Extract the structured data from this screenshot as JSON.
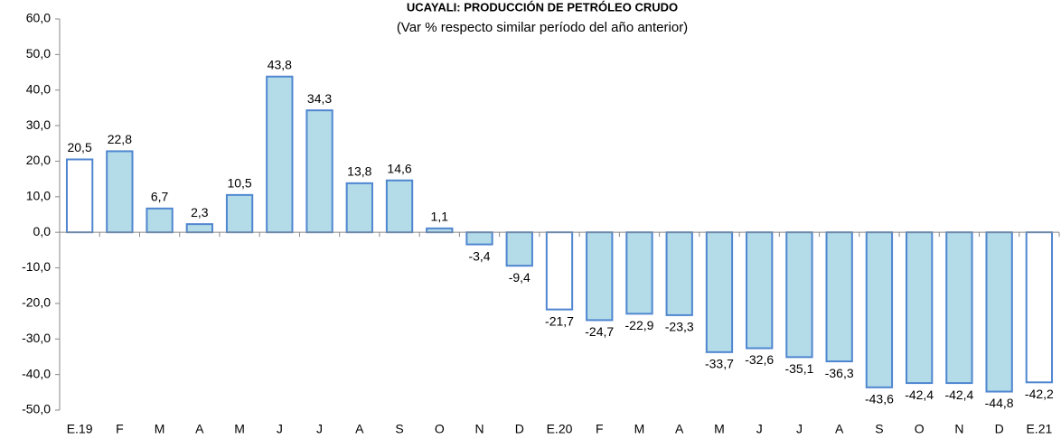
{
  "chart_data": {
    "type": "bar",
    "title": "UCAYALI: PRODUCCIÓN DE PETRÓLEO CRUDO",
    "subtitle": "(Var % respecto similar período del año anterior)",
    "categories": [
      "E.19",
      "F",
      "M",
      "A",
      "M",
      "J",
      "J",
      "A",
      "S",
      "O",
      "N",
      "D",
      "E.20",
      "F",
      "M",
      "A",
      "M",
      "J",
      "J",
      "A",
      "S",
      "O",
      "N",
      "D",
      "E.21"
    ],
    "values": [
      20.5,
      22.8,
      6.7,
      2.3,
      10.5,
      43.8,
      34.3,
      13.8,
      14.6,
      1.1,
      -3.4,
      -9.4,
      -21.7,
      -24.7,
      -22.9,
      -23.3,
      -33.7,
      -32.6,
      -35.1,
      -36.3,
      -43.6,
      -42.4,
      -42.4,
      -44.8,
      -42.2
    ],
    "value_labels": [
      "20,5",
      "22,8",
      "6,7",
      "2,3",
      "10,5",
      "43,8",
      "34,3",
      "13,8",
      "14,6",
      "1,1",
      "-3,4",
      "-9,4",
      "-21,7",
      "-24,7",
      "-22,9",
      "-23,3",
      "-33,7",
      "-32,6",
      "-35,1",
      "-36,3",
      "-43,6",
      "-42,4",
      "-42,4",
      "-44,8",
      "-42,2"
    ],
    "colors": [
      "#ffffff",
      "#b4dce8",
      "#b4dce8",
      "#b4dce8",
      "#b4dce8",
      "#b4dce8",
      "#b4dce8",
      "#b4dce8",
      "#b4dce8",
      "#b4dce8",
      "#b4dce8",
      "#b4dce8",
      "#ffffff",
      "#b4dce8",
      "#b4dce8",
      "#b4dce8",
      "#b4dce8",
      "#b4dce8",
      "#b4dce8",
      "#b4dce8",
      "#b4dce8",
      "#b4dce8",
      "#b4dce8",
      "#b4dce8",
      "#ffffff"
    ],
    "edge_color": "#4f86d0",
    "ylim": [
      -50,
      60
    ],
    "yticks": [
      {
        "value": -50,
        "label": "-50,0"
      },
      {
        "value": -40,
        "label": "-40,0"
      },
      {
        "value": -30,
        "label": "-30,0"
      },
      {
        "value": -20,
        "label": "-20,0"
      },
      {
        "value": -10,
        "label": "-10,0"
      },
      {
        "value": 0,
        "label": "0,0"
      },
      {
        "value": 10,
        "label": "10,0"
      },
      {
        "value": 20,
        "label": "20,0"
      },
      {
        "value": 30,
        "label": "30,0"
      },
      {
        "value": 40,
        "label": "40,0"
      },
      {
        "value": 50,
        "label": "50,0"
      },
      {
        "value": 60,
        "label": "60,0"
      }
    ],
    "grid": false
  }
}
